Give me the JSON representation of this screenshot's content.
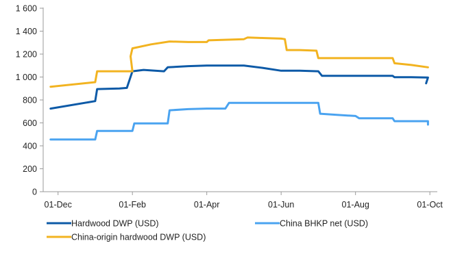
{
  "chart_data": {
    "type": "line",
    "title": "",
    "xlabel": "",
    "ylabel": "",
    "x_axis": {
      "ticks": [
        {
          "label": "01-Dec",
          "month": 0
        },
        {
          "label": "01-Feb",
          "month": 2
        },
        {
          "label": "01-Apr",
          "month": 4
        },
        {
          "label": "01-Jun",
          "month": 6
        },
        {
          "label": "01-Aug",
          "month": 8
        },
        {
          "label": "01-Oct",
          "month": 10
        }
      ],
      "range": [
        -0.4,
        10.2
      ]
    },
    "y_axis": {
      "ticks": [
        {
          "label": "0",
          "value": 0
        },
        {
          "label": "200",
          "value": 200
        },
        {
          "label": "400",
          "value": 400
        },
        {
          "label": "600",
          "value": 600
        },
        {
          "label": "800",
          "value": 800
        },
        {
          "label": "1 000",
          "value": 1000
        },
        {
          "label": "1 200",
          "value": 1200
        },
        {
          "label": "1 400",
          "value": 1400
        },
        {
          "label": "1 600",
          "value": 1600
        }
      ],
      "ylim": [
        0,
        1600
      ]
    },
    "grid": false,
    "legend_position": "bottom",
    "series": [
      {
        "name": "Hardwood DWP (USD)",
        "color": "#0d5aa7",
        "points": [
          [
            -0.2,
            725
          ],
          [
            1.0,
            790
          ],
          [
            1.05,
            895
          ],
          [
            1.65,
            900
          ],
          [
            1.85,
            905
          ],
          [
            2.0,
            1050
          ],
          [
            2.3,
            1062
          ],
          [
            2.85,
            1050
          ],
          [
            2.95,
            1085
          ],
          [
            3.5,
            1095
          ],
          [
            4.0,
            1100
          ],
          [
            4.5,
            1100
          ],
          [
            5.0,
            1100
          ],
          [
            5.5,
            1080
          ],
          [
            6.0,
            1055
          ],
          [
            6.5,
            1055
          ],
          [
            7.0,
            1050
          ],
          [
            7.1,
            1010
          ],
          [
            7.5,
            1010
          ],
          [
            8.0,
            1010
          ],
          [
            8.5,
            1010
          ],
          [
            9.0,
            1010
          ],
          [
            9.05,
            998
          ],
          [
            9.5,
            998
          ],
          [
            9.95,
            995
          ],
          [
            9.9,
            945
          ]
        ]
      },
      {
        "name": "China BHKP net (USD)",
        "color": "#4aa3f0",
        "points": [
          [
            -0.2,
            455
          ],
          [
            1.0,
            455
          ],
          [
            1.05,
            530
          ],
          [
            1.6,
            530
          ],
          [
            2.0,
            530
          ],
          [
            2.05,
            595
          ],
          [
            2.95,
            595
          ],
          [
            3.0,
            710
          ],
          [
            3.5,
            720
          ],
          [
            4.0,
            725
          ],
          [
            4.5,
            725
          ],
          [
            4.6,
            775
          ],
          [
            5.0,
            775
          ],
          [
            6.0,
            775
          ],
          [
            6.5,
            775
          ],
          [
            7.0,
            775
          ],
          [
            7.05,
            680
          ],
          [
            7.5,
            670
          ],
          [
            8.0,
            660
          ],
          [
            8.1,
            640
          ],
          [
            8.5,
            640
          ],
          [
            9.0,
            640
          ],
          [
            9.05,
            615
          ],
          [
            9.5,
            615
          ],
          [
            9.95,
            615
          ],
          [
            9.95,
            585
          ]
        ]
      },
      {
        "name": "China-origin hardwood DWP (USD)",
        "color": "#f2b320",
        "points": [
          [
            -0.2,
            915
          ],
          [
            1.0,
            955
          ],
          [
            1.05,
            1050
          ],
          [
            1.6,
            1050
          ],
          [
            2.0,
            1050
          ],
          [
            1.95,
            1180
          ],
          [
            2.0,
            1250
          ],
          [
            2.5,
            1285
          ],
          [
            3.0,
            1310
          ],
          [
            3.5,
            1305
          ],
          [
            4.0,
            1305
          ],
          [
            4.05,
            1320
          ],
          [
            5.0,
            1330
          ],
          [
            5.1,
            1345
          ],
          [
            5.5,
            1340
          ],
          [
            6.0,
            1335
          ],
          [
            6.1,
            1330
          ],
          [
            6.15,
            1235
          ],
          [
            6.5,
            1235
          ],
          [
            6.95,
            1230
          ],
          [
            7.0,
            1165
          ],
          [
            8.0,
            1165
          ],
          [
            8.5,
            1165
          ],
          [
            9.0,
            1165
          ],
          [
            9.05,
            1120
          ],
          [
            9.5,
            1105
          ],
          [
            9.95,
            1085
          ]
        ]
      }
    ]
  }
}
